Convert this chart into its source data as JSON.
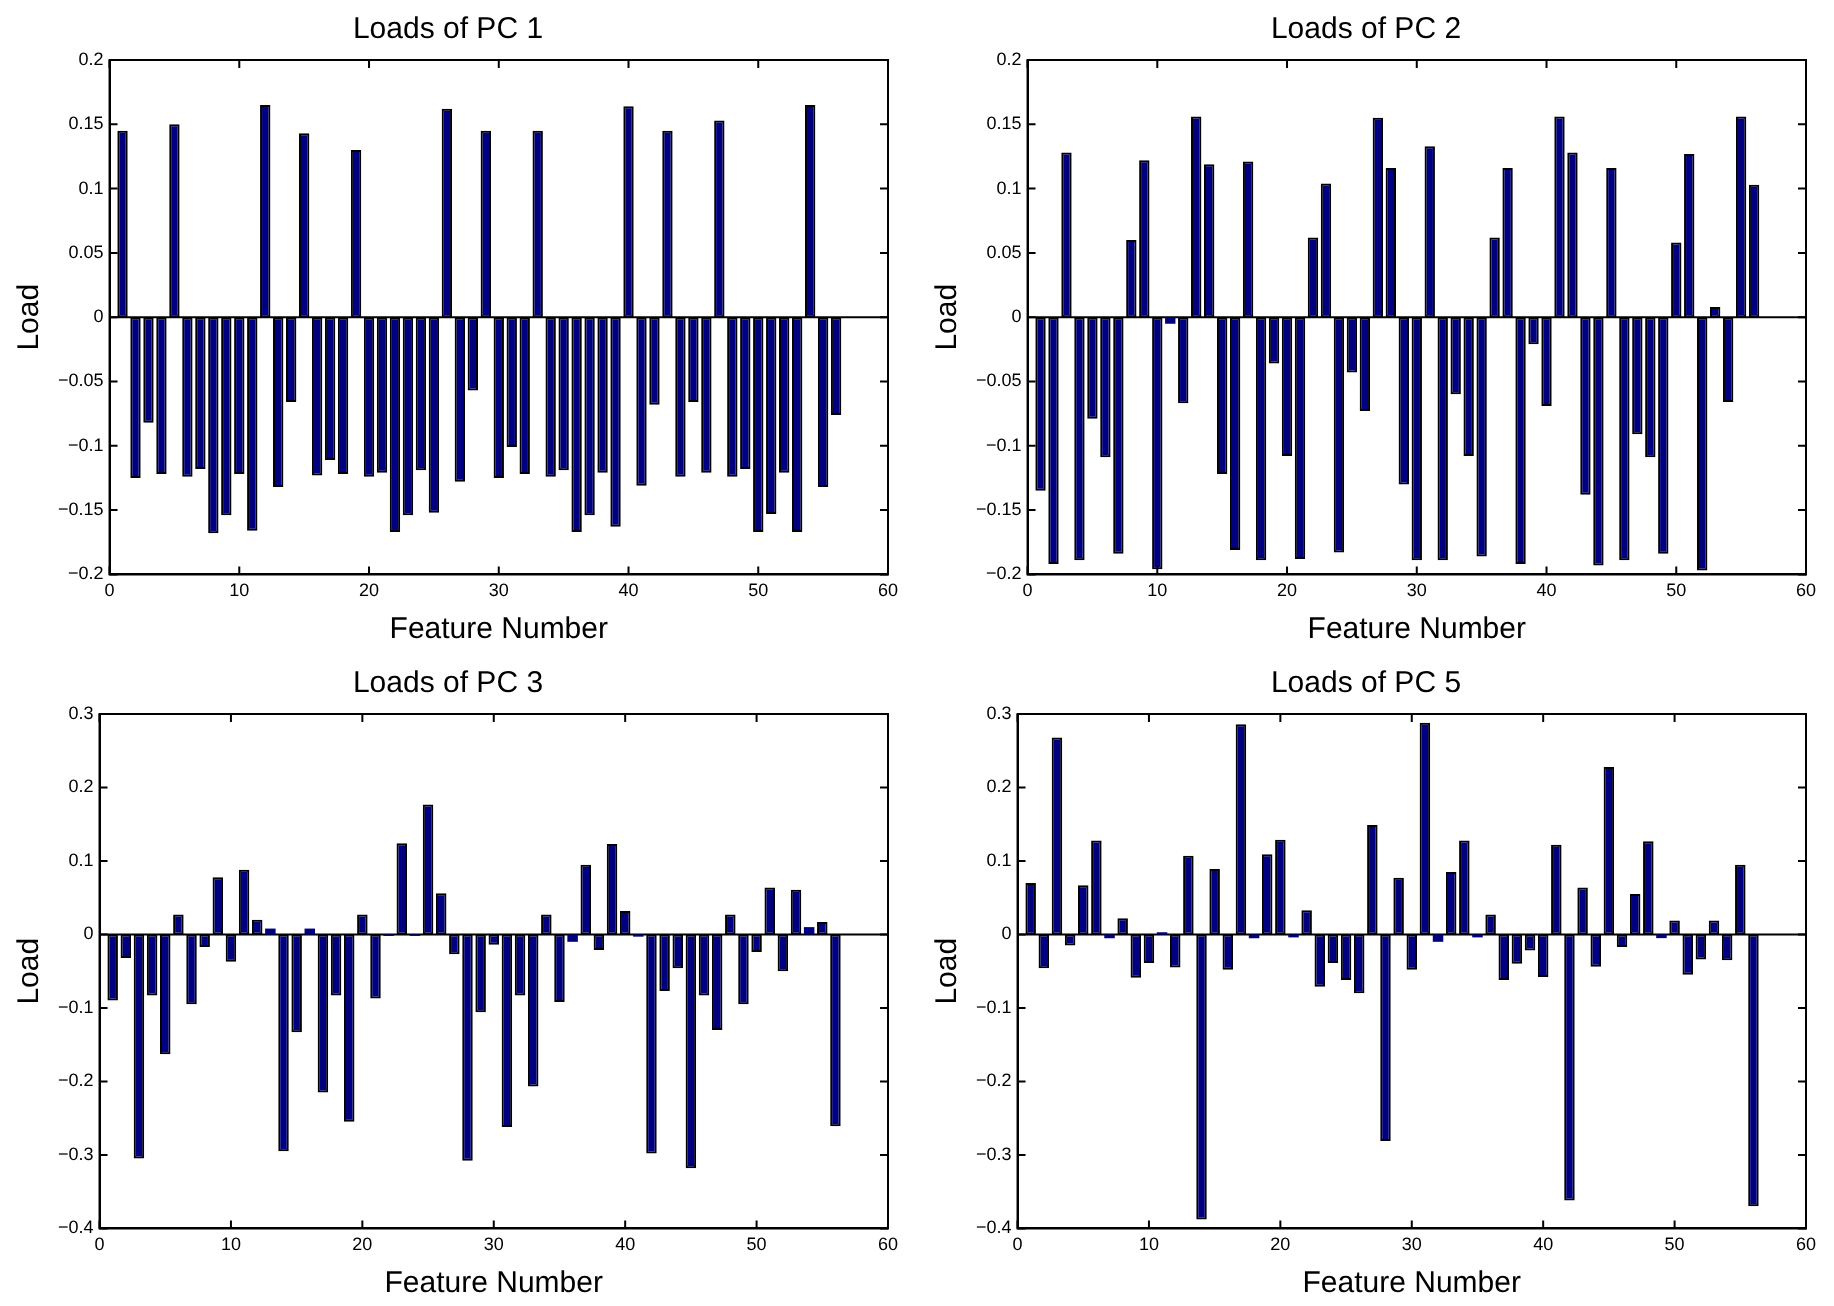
{
  "chart_data": [
    {
      "type": "bar",
      "title": "Loads of PC 1",
      "xlabel": "Feature Number",
      "ylabel": "Load",
      "color": "#000080",
      "grid": false,
      "legend": false,
      "x": [
        1,
        2,
        3,
        4,
        5,
        6,
        7,
        8,
        9,
        10,
        11,
        12,
        13,
        14,
        15,
        16,
        17,
        18,
        19,
        20,
        21,
        22,
        23,
        24,
        25,
        26,
        27,
        28,
        29,
        30,
        31,
        32,
        33,
        34,
        35,
        36,
        37,
        38,
        39,
        40,
        41,
        42,
        43,
        44,
        45,
        46,
        47,
        48,
        49,
        50,
        51,
        52,
        53,
        54,
        55,
        56
      ],
      "values": [
        0.145,
        -0.125,
        -0.082,
        -0.122,
        0.15,
        -0.124,
        -0.118,
        -0.168,
        -0.154,
        -0.122,
        -0.166,
        0.165,
        -0.132,
        -0.066,
        0.143,
        -0.123,
        -0.111,
        -0.122,
        0.13,
        -0.124,
        -0.121,
        -0.167,
        -0.154,
        -0.119,
        -0.152,
        0.162,
        -0.128,
        -0.057,
        0.145,
        -0.125,
        -0.101,
        -0.122,
        0.145,
        -0.124,
        -0.119,
        -0.167,
        -0.154,
        -0.121,
        -0.163,
        0.164,
        -0.131,
        -0.068,
        0.145,
        -0.124,
        -0.066,
        -0.121,
        0.153,
        -0.124,
        -0.118,
        -0.167,
        -0.153,
        -0.121,
        -0.167,
        0.165,
        -0.132,
        -0.076
      ],
      "xlim": [
        0,
        60
      ],
      "xticks": [
        0,
        10,
        20,
        30,
        40,
        50,
        60
      ],
      "ylim": [
        -0.2,
        0.2
      ],
      "yticks": [
        -0.2,
        -0.15,
        -0.1,
        -0.05,
        0,
        0.05,
        0.1,
        0.15,
        0.2
      ],
      "ref_lines": [
        {
          "axis": "y",
          "value": 0,
          "color": "#000000"
        }
      ]
    },
    {
      "type": "bar",
      "title": "Loads of PC 2",
      "xlabel": "Feature Number",
      "ylabel": "Load",
      "color": "#000080",
      "grid": false,
      "legend": false,
      "x": [
        1,
        2,
        3,
        4,
        5,
        6,
        7,
        8,
        9,
        10,
        11,
        12,
        13,
        14,
        15,
        16,
        17,
        18,
        19,
        20,
        21,
        22,
        23,
        24,
        25,
        26,
        27,
        28,
        29,
        30,
        31,
        32,
        33,
        34,
        35,
        36,
        37,
        38,
        39,
        40,
        41,
        42,
        43,
        44,
        45,
        46,
        47,
        48,
        49,
        50,
        51,
        52,
        53,
        54,
        55,
        56
      ],
      "values": [
        -0.135,
        -0.192,
        0.128,
        -0.189,
        -0.079,
        -0.109,
        -0.184,
        0.06,
        0.122,
        -0.196,
        -0.005,
        -0.067,
        0.156,
        0.119,
        -0.122,
        -0.181,
        0.121,
        -0.189,
        -0.036,
        -0.108,
        -0.188,
        0.062,
        0.104,
        -0.183,
        -0.043,
        -0.073,
        0.155,
        0.116,
        -0.13,
        -0.189,
        0.133,
        -0.189,
        -0.06,
        -0.108,
        -0.186,
        0.062,
        0.116,
        -0.192,
        -0.021,
        -0.069,
        0.156,
        0.128,
        -0.138,
        -0.193,
        0.116,
        -0.189,
        -0.091,
        -0.109,
        -0.184,
        0.058,
        0.127,
        -0.197,
        0.008,
        -0.066,
        0.156,
        0.103
      ],
      "xlim": [
        0,
        60
      ],
      "xticks": [
        0,
        10,
        20,
        30,
        40,
        50,
        60
      ],
      "ylim": [
        -0.2,
        0.2
      ],
      "yticks": [
        -0.2,
        -0.15,
        -0.1,
        -0.05,
        0,
        0.05,
        0.1,
        0.15,
        0.2
      ],
      "ref_lines": [
        {
          "axis": "y",
          "value": 0,
          "color": "#000000"
        }
      ]
    },
    {
      "type": "bar",
      "title": "Loads of PC 3",
      "xlabel": "Feature Number",
      "ylabel": "Load",
      "color": "#000080",
      "grid": false,
      "legend": false,
      "x": [
        1,
        2,
        3,
        4,
        5,
        6,
        7,
        8,
        9,
        10,
        11,
        12,
        13,
        14,
        15,
        16,
        17,
        18,
        19,
        20,
        21,
        22,
        23,
        24,
        25,
        26,
        27,
        28,
        29,
        30,
        31,
        32,
        33,
        34,
        35,
        36,
        37,
        38,
        39,
        40,
        41,
        42,
        43,
        44,
        45,
        46,
        47,
        48,
        49,
        50,
        51,
        52,
        53,
        54,
        55,
        56
      ],
      "values": [
        -0.09,
        -0.032,
        -0.305,
        -0.083,
        -0.163,
        0.027,
        -0.095,
        -0.017,
        0.078,
        -0.037,
        0.088,
        0.02,
        0.008,
        -0.295,
        -0.133,
        0.008,
        -0.215,
        -0.083,
        -0.255,
        0.027,
        -0.087,
        -0.002,
        0.124,
        -0.002,
        0.177,
        0.056,
        -0.027,
        -0.308,
        -0.106,
        -0.014,
        -0.262,
        -0.083,
        -0.207,
        0.027,
        -0.092,
        -0.01,
        0.095,
        -0.021,
        0.123,
        0.032,
        -0.003,
        -0.298,
        -0.077,
        -0.046,
        -0.318,
        -0.083,
        -0.13,
        0.027,
        -0.095,
        -0.024,
        0.064,
        -0.05,
        0.061,
        0.01,
        0.017,
        -0.261
      ],
      "xlim": [
        0,
        60
      ],
      "xticks": [
        0,
        10,
        20,
        30,
        40,
        50,
        60
      ],
      "ylim": [
        -0.4,
        0.3
      ],
      "yticks": [
        -0.4,
        -0.3,
        -0.2,
        -0.1,
        0,
        0.1,
        0.2,
        0.3
      ],
      "ref_lines": [
        {
          "axis": "y",
          "value": 0,
          "color": "#000000"
        }
      ]
    },
    {
      "type": "bar",
      "title": "Loads of PC 5",
      "xlabel": "Feature Number",
      "ylabel": "Load",
      "color": "#000080",
      "grid": false,
      "legend": false,
      "x": [
        1,
        2,
        3,
        4,
        5,
        6,
        7,
        8,
        9,
        10,
        11,
        12,
        13,
        14,
        15,
        16,
        17,
        18,
        19,
        20,
        21,
        22,
        23,
        24,
        25,
        26,
        27,
        28,
        29,
        30,
        31,
        32,
        33,
        34,
        35,
        36,
        37,
        38,
        39,
        40,
        41,
        42,
        43,
        44,
        45,
        46,
        47,
        48,
        49,
        50,
        51,
        52,
        53,
        54,
        55,
        56
      ],
      "values": [
        0.07,
        -0.046,
        0.268,
        -0.015,
        0.067,
        0.128,
        -0.005,
        0.022,
        -0.059,
        -0.039,
        0.003,
        -0.045,
        0.107,
        -0.388,
        0.089,
        -0.048,
        0.286,
        -0.005,
        0.109,
        0.129,
        -0.004,
        0.033,
        -0.071,
        -0.039,
        -0.062,
        -0.08,
        0.149,
        -0.281,
        0.077,
        -0.048,
        0.288,
        -0.01,
        0.085,
        0.128,
        -0.004,
        0.027,
        -0.062,
        -0.04,
        -0.022,
        -0.058,
        0.122,
        -0.362,
        0.064,
        -0.044,
        0.228,
        -0.017,
        0.055,
        0.127,
        -0.005,
        0.019,
        -0.055,
        -0.034,
        0.019,
        -0.035,
        0.095,
        -0.37
      ],
      "xlim": [
        0,
        60
      ],
      "xticks": [
        0,
        10,
        20,
        30,
        40,
        50,
        60
      ],
      "ylim": [
        -0.4,
        0.3
      ],
      "yticks": [
        -0.4,
        -0.3,
        -0.2,
        -0.1,
        0,
        0.1,
        0.2,
        0.3
      ],
      "ref_lines": [
        {
          "axis": "y",
          "value": 0,
          "color": "#000000"
        }
      ]
    }
  ]
}
